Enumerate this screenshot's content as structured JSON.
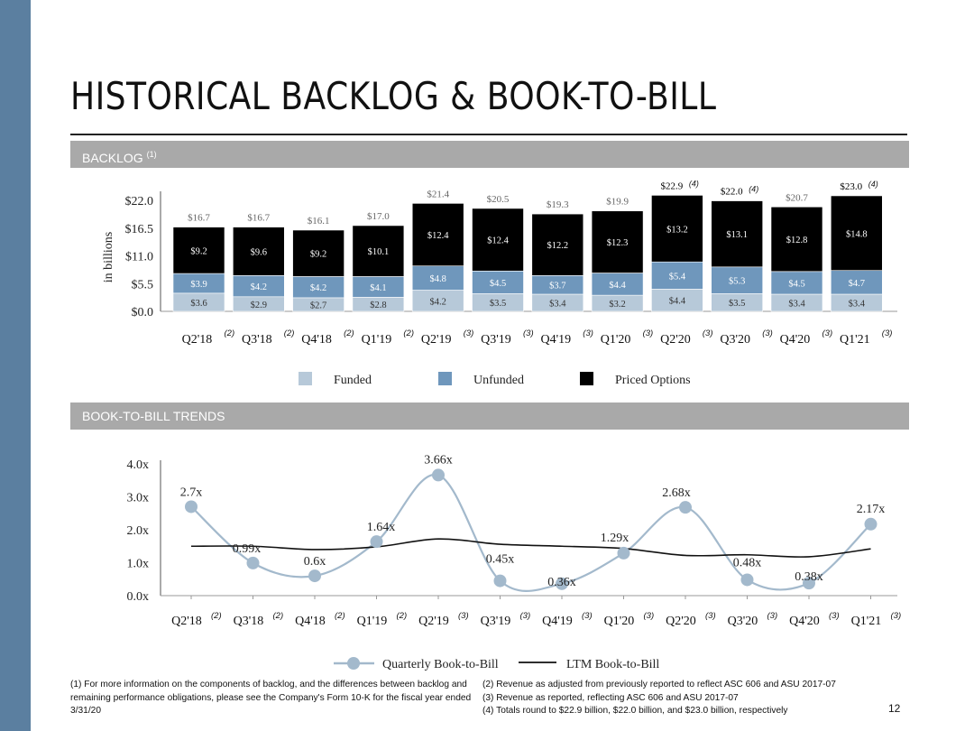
{
  "page": {
    "title": "HISTORICAL BACKLOG & BOOK-TO-BILL",
    "page_number": "12"
  },
  "sections": {
    "backlog": {
      "label": "BACKLOG",
      "sup": "(1)"
    },
    "book_to_bill": {
      "label": "BOOK-TO-BILL TRENDS"
    }
  },
  "colors": {
    "funded": "#b7c9d9",
    "unfunded": "#6f97bc",
    "priced_options": "#000000",
    "line_quarterly": "#a3b9cc",
    "line_ltm": "#111111",
    "sidebar": "#5b7fa0",
    "band": "#a9a9a9"
  },
  "chart_data": [
    {
      "type": "bar",
      "stacked": true,
      "ylabel": "in billions",
      "ylim": [
        0,
        22
      ],
      "yticks": [
        "$0.0",
        "$5.5",
        "$11.0",
        "$16.5",
        "$22.0"
      ],
      "categories": [
        "Q2'18",
        "Q3'18",
        "Q4'18",
        "Q1'19",
        "Q2'19",
        "Q3'19",
        "Q4'19",
        "Q1'20",
        "Q2'20",
        "Q3'20",
        "Q4'20",
        "Q1'21"
      ],
      "category_notes": [
        "(2)",
        "(2)",
        "(2)",
        "(2)",
        "(3)",
        "(3)",
        "(3)",
        "(3)",
        "(3)",
        "(3)",
        "(3)",
        "(3)"
      ],
      "series": [
        {
          "name": "Funded",
          "values": [
            3.6,
            2.9,
            2.7,
            2.8,
            4.2,
            3.5,
            3.4,
            3.2,
            4.4,
            3.5,
            3.4,
            3.4
          ],
          "labels": [
            "$3.6",
            "$2.9",
            "$2.7",
            "$2.8",
            "$4.2",
            "$3.5",
            "$3.4",
            "$3.2",
            "$4.4",
            "$3.5",
            "$3.4",
            "$3.4"
          ]
        },
        {
          "name": "Unfunded",
          "values": [
            3.9,
            4.2,
            4.2,
            4.1,
            4.8,
            4.5,
            3.7,
            4.4,
            5.4,
            5.3,
            4.5,
            4.7
          ],
          "labels": [
            "$3.9",
            "$4.2",
            "$4.2",
            "$4.1",
            "$4.8",
            "$4.5",
            "$3.7",
            "$4.4",
            "$5.4",
            "$5.3",
            "$4.5",
            "$4.7"
          ]
        },
        {
          "name": "Priced Options",
          "values": [
            9.2,
            9.6,
            9.2,
            10.1,
            12.4,
            12.4,
            12.2,
            12.3,
            13.2,
            13.1,
            12.8,
            14.8
          ],
          "labels": [
            "$9.2",
            "$9.6",
            "$9.2",
            "$10.1",
            "$12.4",
            "$12.4",
            "$12.2",
            "$12.3",
            "$13.2",
            "$13.1",
            "$12.8",
            "$14.8"
          ]
        }
      ],
      "totals": [
        16.7,
        16.7,
        16.1,
        17.0,
        21.4,
        20.5,
        19.3,
        19.9,
        22.9,
        22.0,
        20.7,
        23.0
      ],
      "total_labels": [
        "$16.7",
        "$16.7",
        "$16.1",
        "$17.0",
        "$21.4",
        "$20.5",
        "$19.3",
        "$19.9",
        "$22.9",
        "$22.0",
        "$20.7",
        "$23.0"
      ],
      "total_notes": [
        "",
        "",
        "",
        "",
        "",
        "",
        "",
        "",
        "(4)",
        "(4)",
        "",
        "(4)"
      ],
      "legend": [
        "Funded",
        "Unfunded",
        "Priced Options"
      ],
      "legend_position": "bottom"
    },
    {
      "type": "line",
      "ylim": [
        0,
        4
      ],
      "yticks": [
        "0.0x",
        "1.0x",
        "2.0x",
        "3.0x",
        "4.0x"
      ],
      "categories": [
        "Q2'18",
        "Q3'18",
        "Q4'18",
        "Q1'19",
        "Q2'19",
        "Q3'19",
        "Q4'19",
        "Q1'20",
        "Q2'20",
        "Q3'20",
        "Q4'20",
        "Q1'21"
      ],
      "category_notes": [
        "(2)",
        "(2)",
        "(2)",
        "(2)",
        "(3)",
        "(3)",
        "(3)",
        "(3)",
        "(3)",
        "(3)",
        "(3)",
        "(3)"
      ],
      "series": [
        {
          "name": "Quarterly Book-to-Bill",
          "values": [
            2.7,
            0.99,
            0.6,
            1.64,
            3.66,
            0.45,
            0.36,
            1.29,
            2.68,
            0.48,
            0.38,
            2.17
          ],
          "labels": [
            "2.7x",
            "0.99x",
            "0.6x",
            "1.64x",
            "3.66x",
            "0.45x",
            "0.36x",
            "1.29x",
            "2.68x",
            "0.48x",
            "0.38x",
            "2.17x"
          ]
        },
        {
          "name": "LTM Book-to-Bill",
          "values": [
            1.5,
            1.5,
            1.4,
            1.48,
            1.72,
            1.56,
            1.5,
            1.43,
            1.22,
            1.24,
            1.18,
            1.42
          ]
        }
      ],
      "legend": [
        "Quarterly Book-to-Bill",
        "LTM Book-to-Bill"
      ],
      "legend_position": "bottom"
    }
  ],
  "footnotes": {
    "left": "(1) For more information on the components of backlog, and the differences between backlog and remaining performance obligations, please see the Company's Form 10-K for the fiscal year ended 3/31/20",
    "right": [
      "(2) Revenue as adjusted from previously reported to reflect ASC 606 and ASU 2017-07",
      "(3) Revenue as reported, reflecting ASC 606 and ASU 2017-07",
      "(4) Totals round to $22.9 billion, $22.0 billion, and $23.0 billion, respectively"
    ]
  }
}
